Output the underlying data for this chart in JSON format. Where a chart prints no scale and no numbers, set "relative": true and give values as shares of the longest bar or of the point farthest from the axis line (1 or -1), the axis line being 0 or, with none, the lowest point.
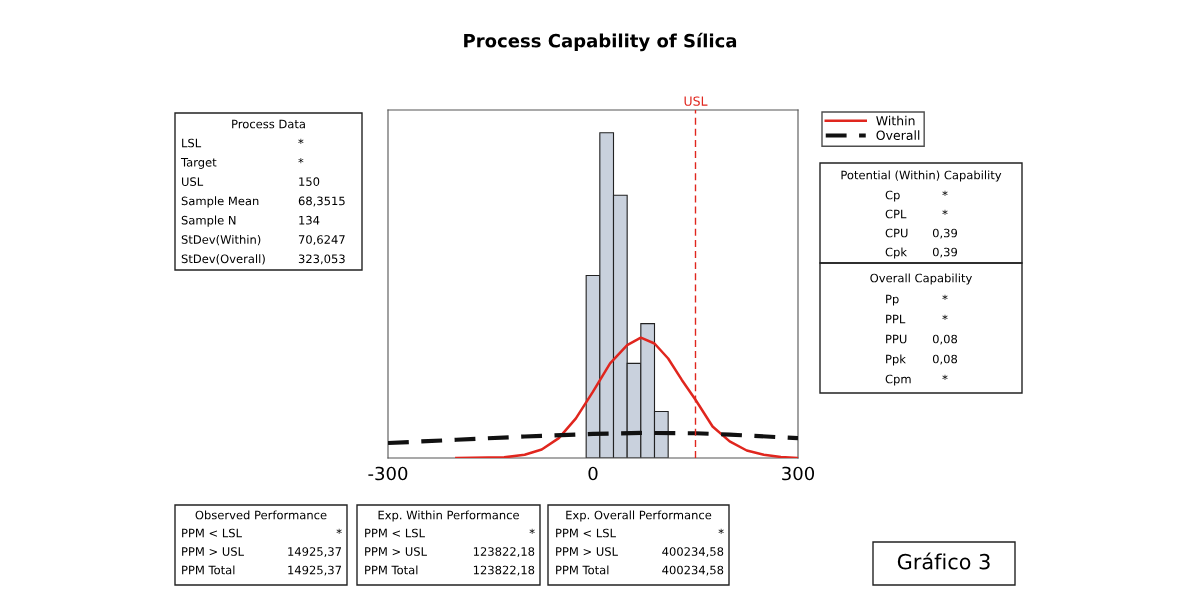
{
  "chart_data": {
    "type": "histogram",
    "title": "Process Capability of Sílica",
    "relative": true,
    "xlim": [
      -300,
      300
    ],
    "xticks": [
      -300,
      0,
      300
    ],
    "grid": false,
    "legend": "right",
    "color": "#c9d1dd",
    "bins": [
      -10,
      10,
      30,
      50,
      70,
      90,
      110
    ],
    "values": [
      0.561,
      1.0,
      0.808,
      0.291,
      0.413,
      0.143
    ],
    "series": [
      {
        "type": "line",
        "name": "Within",
        "color": "#e0261e",
        "line_style": "solid",
        "x": [
          -200,
          -130,
          -100,
          -75,
          -50,
          -25,
          0,
          25,
          50,
          70,
          90,
          110,
          130,
          150,
          175,
          200,
          225,
          250,
          275,
          300
        ],
        "values": [
          0,
          0.002,
          0.01,
          0.026,
          0.061,
          0.122,
          0.204,
          0.291,
          0.347,
          0.37,
          0.352,
          0.306,
          0.24,
          0.179,
          0.097,
          0.051,
          0.023,
          0.01,
          0.003,
          0
        ]
      },
      {
        "type": "line",
        "name": "Overall",
        "color": "#111111",
        "line_style": "dashed",
        "x": [
          -300,
          -200,
          -100,
          0,
          70,
          150,
          200,
          300
        ],
        "values": [
          0.046,
          0.056,
          0.066,
          0.074,
          0.077,
          0.076,
          0.072,
          0.061
        ]
      }
    ],
    "ref_lines": [
      {
        "axis": "x",
        "value": 150,
        "label": "USL",
        "color": "#e0261e",
        "line_style": "dashed"
      }
    ],
    "annotations": [
      "Process Data",
      "LSL",
      "*",
      "Target",
      "*",
      "USL",
      "150",
      "Sample Mean",
      "68,3515",
      "Sample N",
      "134",
      "StDev(Within)",
      "70,6247",
      "StDev(Overall)",
      "323,053",
      "Potential (Within) Capability",
      "Cp",
      "*",
      "CPL",
      "*",
      "CPU",
      "0,39",
      "Cpk",
      "0,39",
      "Overall Capability",
      "Pp",
      "*",
      "PPL",
      "*",
      "PPU",
      "0,08",
      "Ppk",
      "0,08",
      "Cpm",
      "*",
      "Observed Performance",
      "PPM < LSL",
      "*",
      "PPM > USL",
      "14925,37",
      "PPM Total",
      "14925,37",
      "Exp. Within Performance",
      "PPM < LSL",
      "*",
      "PPM > USL",
      "123822,18",
      "PPM Total",
      "123822,18",
      "Exp. Overall Performance",
      "PPM < LSL",
      "*",
      "PPM > USL",
      "400234,58",
      "PPM Total",
      "400234,58",
      "Gráfico 3"
    ]
  }
}
